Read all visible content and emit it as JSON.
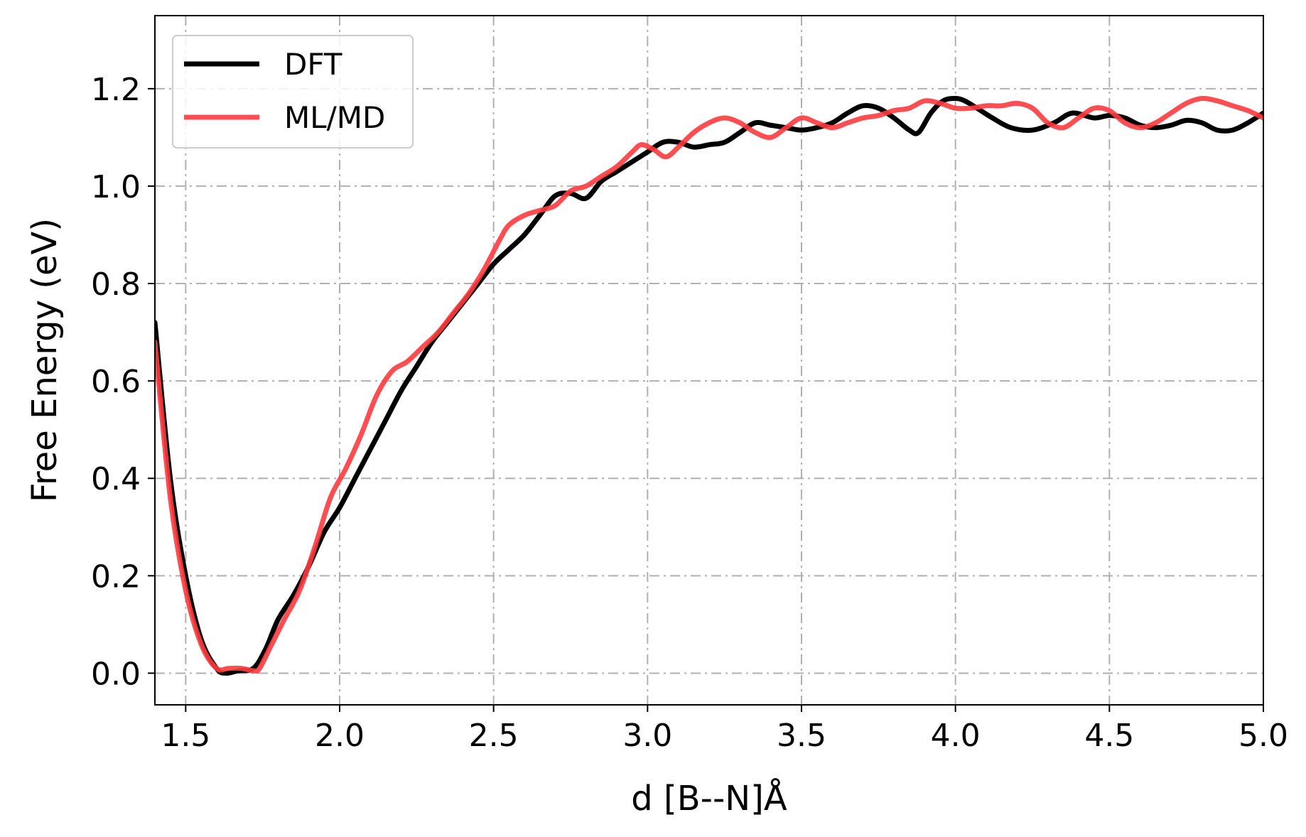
{
  "chart_data": {
    "type": "line",
    "title": "",
    "xlabel": "d [B--N]Å",
    "ylabel": "Free Energy (eV)",
    "xlim": [
      1.4,
      5.0
    ],
    "ylim": [
      -0.065,
      1.35
    ],
    "xticks": [
      1.5,
      2.0,
      2.5,
      3.0,
      3.5,
      4.0,
      4.5,
      5.0
    ],
    "xtick_labels": [
      "1.5",
      "2.0",
      "2.5",
      "3.0",
      "3.5",
      "4.0",
      "4.5",
      "5.0"
    ],
    "yticks": [
      0.0,
      0.2,
      0.4,
      0.6,
      0.8,
      1.0,
      1.2
    ],
    "ytick_labels": [
      "0.0",
      "0.2",
      "0.4",
      "0.6",
      "0.8",
      "1.0",
      "1.2"
    ],
    "grid": true,
    "legend_position": "top-left",
    "series": [
      {
        "name": "DFT",
        "color": "#000000",
        "x": [
          1.4,
          1.45,
          1.5,
          1.55,
          1.6,
          1.63,
          1.67,
          1.72,
          1.76,
          1.8,
          1.85,
          1.9,
          1.95,
          2.0,
          2.05,
          2.1,
          2.15,
          2.2,
          2.25,
          2.3,
          2.35,
          2.4,
          2.45,
          2.5,
          2.55,
          2.6,
          2.65,
          2.7,
          2.75,
          2.8,
          2.85,
          2.9,
          2.95,
          3.0,
          3.05,
          3.1,
          3.15,
          3.2,
          3.25,
          3.3,
          3.35,
          3.4,
          3.45,
          3.5,
          3.55,
          3.6,
          3.65,
          3.7,
          3.75,
          3.8,
          3.85,
          3.88,
          3.92,
          3.96,
          4.0,
          4.03,
          4.07,
          4.12,
          4.18,
          4.25,
          4.32,
          4.38,
          4.45,
          4.5,
          4.55,
          4.6,
          4.65,
          4.7,
          4.75,
          4.8,
          4.85,
          4.9,
          4.95,
          5.0
        ],
        "y": [
          0.72,
          0.4,
          0.2,
          0.07,
          0.01,
          0.0,
          0.005,
          0.01,
          0.05,
          0.11,
          0.16,
          0.22,
          0.29,
          0.34,
          0.4,
          0.46,
          0.52,
          0.58,
          0.63,
          0.68,
          0.72,
          0.76,
          0.8,
          0.84,
          0.87,
          0.9,
          0.94,
          0.98,
          0.985,
          0.975,
          1.01,
          1.03,
          1.05,
          1.07,
          1.09,
          1.09,
          1.08,
          1.085,
          1.09,
          1.11,
          1.13,
          1.125,
          1.12,
          1.115,
          1.12,
          1.13,
          1.15,
          1.165,
          1.16,
          1.14,
          1.115,
          1.11,
          1.15,
          1.175,
          1.18,
          1.175,
          1.16,
          1.14,
          1.12,
          1.115,
          1.13,
          1.15,
          1.14,
          1.145,
          1.14,
          1.125,
          1.12,
          1.125,
          1.135,
          1.13,
          1.115,
          1.115,
          1.13,
          1.15
        ]
      },
      {
        "name": "ML/MD",
        "color": "#ff3b3f",
        "x": [
          1.4,
          1.45,
          1.5,
          1.55,
          1.6,
          1.64,
          1.68,
          1.72,
          1.74,
          1.78,
          1.82,
          1.87,
          1.92,
          1.97,
          2.02,
          2.07,
          2.12,
          2.17,
          2.22,
          2.27,
          2.32,
          2.37,
          2.42,
          2.47,
          2.52,
          2.55,
          2.6,
          2.65,
          2.7,
          2.75,
          2.8,
          2.85,
          2.9,
          2.95,
          2.98,
          3.02,
          3.06,
          3.1,
          3.15,
          3.2,
          3.25,
          3.3,
          3.35,
          3.4,
          3.45,
          3.5,
          3.55,
          3.6,
          3.65,
          3.7,
          3.75,
          3.8,
          3.85,
          3.9,
          3.95,
          4.0,
          4.05,
          4.1,
          4.15,
          4.2,
          4.25,
          4.3,
          4.35,
          4.4,
          4.45,
          4.5,
          4.55,
          4.6,
          4.65,
          4.7,
          4.75,
          4.8,
          4.85,
          4.9,
          4.95,
          5.0
        ],
        "y": [
          0.68,
          0.36,
          0.17,
          0.06,
          0.01,
          0.01,
          0.01,
          0.005,
          0.01,
          0.06,
          0.11,
          0.17,
          0.26,
          0.36,
          0.42,
          0.49,
          0.57,
          0.62,
          0.64,
          0.67,
          0.7,
          0.74,
          0.78,
          0.83,
          0.89,
          0.92,
          0.94,
          0.95,
          0.96,
          0.99,
          1.0,
          1.02,
          1.04,
          1.07,
          1.085,
          1.075,
          1.06,
          1.08,
          1.11,
          1.13,
          1.14,
          1.13,
          1.11,
          1.1,
          1.12,
          1.14,
          1.13,
          1.12,
          1.13,
          1.14,
          1.145,
          1.155,
          1.16,
          1.175,
          1.17,
          1.16,
          1.16,
          1.165,
          1.165,
          1.17,
          1.16,
          1.13,
          1.12,
          1.14,
          1.16,
          1.155,
          1.13,
          1.12,
          1.13,
          1.15,
          1.17,
          1.18,
          1.175,
          1.165,
          1.155,
          1.14
        ]
      }
    ]
  }
}
